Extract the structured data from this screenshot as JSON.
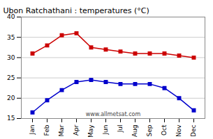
{
  "chart_data": {
    "type": "line",
    "title": "Ubon Ratchathani : temperatures (°C)",
    "categories": [
      "Jan",
      "Feb",
      "Mar",
      "Apr",
      "May",
      "Jun",
      "Jul",
      "Aug",
      "Sep",
      "Oct",
      "Nov",
      "Dec"
    ],
    "series": [
      {
        "color": "#cc0000",
        "marker": "square",
        "values": [
          31.0,
          33.0,
          35.5,
          36.0,
          32.5,
          32.0,
          31.5,
          31.0,
          31.0,
          31.0,
          30.5,
          30.0
        ]
      },
      {
        "color": "#0000cc",
        "marker": "square",
        "values": [
          16.5,
          19.5,
          22.0,
          24.0,
          24.5,
          24.0,
          23.5,
          23.5,
          23.5,
          22.5,
          20.0,
          17.0
        ]
      }
    ],
    "ylim": [
      15,
      40
    ],
    "yticks": [
      15,
      20,
      25,
      30,
      35,
      40
    ],
    "grid": true,
    "annotations": [
      "www.allmetsat.com"
    ]
  }
}
